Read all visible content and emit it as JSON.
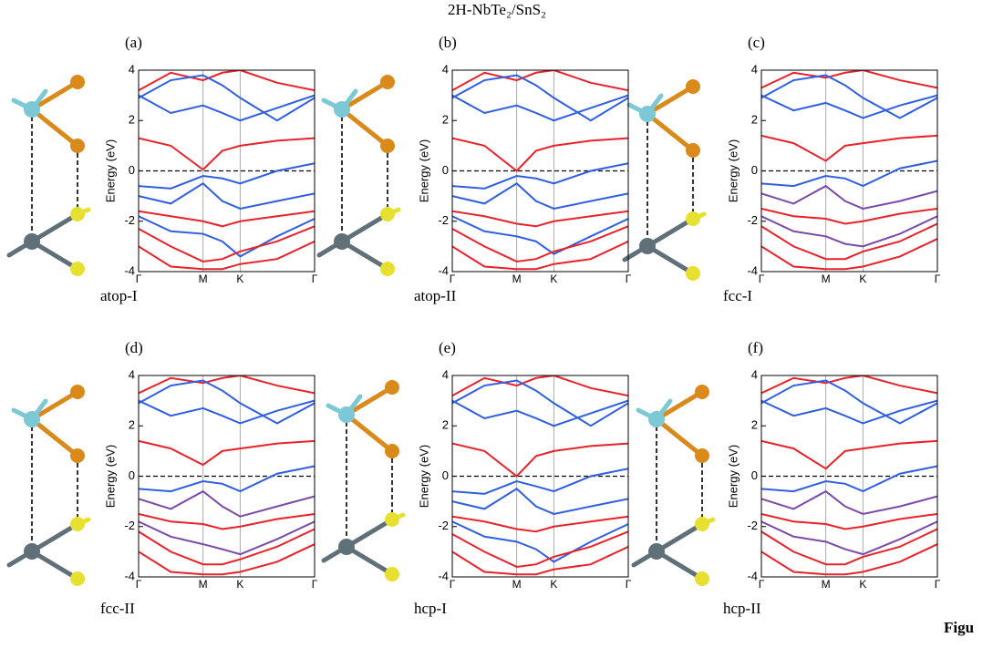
{
  "title": "2H-NbTe₂/SnS₂",
  "caption_fragment": "Figu",
  "chart_data": [
    {
      "type": "line",
      "panel_label": "(a)",
      "caption": "atop-I",
      "ylabel": "Energy (eV)",
      "x": [
        0,
        0.5,
        1,
        1.3,
        1.577,
        2.15,
        2.732
      ],
      "xlim": [
        0,
        2.732
      ],
      "xticks": [
        {
          "value": 0,
          "label": "Γ"
        },
        {
          "value": 1,
          "label": "M"
        },
        {
          "value": 1.577,
          "label": "K"
        },
        {
          "value": 2.732,
          "label": "Γ"
        }
      ],
      "ylim": [
        -4,
        4
      ],
      "yticks": [
        -4,
        -2,
        0,
        2,
        4
      ],
      "reference_line": 0,
      "series": [
        {
          "color": "#e8222a",
          "values": [
            1.3,
            1.0,
            0.05,
            0.8,
            1.0,
            1.2,
            1.3
          ]
        },
        {
          "color": "#e8222a",
          "values": [
            3.2,
            3.9,
            3.6,
            3.9,
            4.0,
            3.5,
            3.2
          ]
        },
        {
          "color": "#2f5fe0",
          "values": [
            3.0,
            2.3,
            2.6,
            2.3,
            2.0,
            2.5,
            3.0
          ]
        },
        {
          "color": "#2f5fe0",
          "values": [
            2.9,
            3.6,
            3.8,
            3.4,
            2.9,
            2.0,
            2.9
          ]
        },
        {
          "color": "#2f5fe0",
          "values": [
            -0.6,
            -0.7,
            -0.2,
            -0.3,
            -0.5,
            0.0,
            0.3
          ]
        },
        {
          "color": "#2f5fe0",
          "values": [
            -1.0,
            -1.3,
            -0.5,
            -1.2,
            -1.5,
            -1.2,
            -0.9
          ]
        },
        {
          "color": "#e8222a",
          "values": [
            -1.6,
            -1.8,
            -2.0,
            -2.2,
            -2.0,
            -1.8,
            -1.6
          ]
        },
        {
          "color": "#2f5fe0",
          "values": [
            -1.8,
            -2.4,
            -2.5,
            -2.8,
            -3.4,
            -2.6,
            -1.9
          ]
        },
        {
          "color": "#e8222a",
          "values": [
            -2.3,
            -3.0,
            -3.6,
            -3.5,
            -3.2,
            -2.8,
            -2.2
          ]
        },
        {
          "color": "#e8222a",
          "values": [
            -3.0,
            -3.8,
            -3.9,
            -3.9,
            -3.7,
            -3.5,
            -2.8
          ]
        }
      ]
    },
    {
      "type": "line",
      "panel_label": "(b)",
      "caption": "atop-II",
      "ylabel": "Energy (eV)",
      "x": [
        0,
        0.5,
        1,
        1.3,
        1.577,
        2.15,
        2.732
      ],
      "xlim": [
        0,
        2.732
      ],
      "xticks": [
        {
          "value": 0,
          "label": "Γ"
        },
        {
          "value": 1,
          "label": "M"
        },
        {
          "value": 1.577,
          "label": "K"
        },
        {
          "value": 2.732,
          "label": "Γ"
        }
      ],
      "ylim": [
        -4,
        4
      ],
      "yticks": [
        -4,
        -2,
        0,
        2,
        4
      ],
      "reference_line": 0,
      "series": [
        {
          "color": "#e8222a",
          "values": [
            1.3,
            1.0,
            0.0,
            0.8,
            1.0,
            1.2,
            1.3
          ]
        },
        {
          "color": "#e8222a",
          "values": [
            3.2,
            3.9,
            3.6,
            3.9,
            4.0,
            3.5,
            3.2
          ]
        },
        {
          "color": "#2f5fe0",
          "values": [
            3.0,
            2.3,
            2.6,
            2.3,
            2.0,
            2.5,
            3.0
          ]
        },
        {
          "color": "#2f5fe0",
          "values": [
            2.9,
            3.6,
            3.8,
            3.4,
            2.9,
            2.0,
            2.9
          ]
        },
        {
          "color": "#2f5fe0",
          "values": [
            -0.6,
            -0.7,
            -0.2,
            -0.3,
            -0.5,
            0.0,
            0.3
          ]
        },
        {
          "color": "#2f5fe0",
          "values": [
            -1.0,
            -1.3,
            -0.5,
            -1.2,
            -1.5,
            -1.2,
            -0.9
          ]
        },
        {
          "color": "#e8222a",
          "values": [
            -1.6,
            -1.8,
            -2.1,
            -2.2,
            -2.0,
            -1.8,
            -1.6
          ]
        },
        {
          "color": "#2f5fe0",
          "values": [
            -1.8,
            -2.4,
            -2.6,
            -2.8,
            -3.3,
            -2.6,
            -1.9
          ]
        },
        {
          "color": "#e8222a",
          "values": [
            -2.3,
            -3.0,
            -3.6,
            -3.5,
            -3.2,
            -2.8,
            -2.2
          ]
        },
        {
          "color": "#e8222a",
          "values": [
            -3.0,
            -3.8,
            -3.9,
            -3.9,
            -3.7,
            -3.5,
            -2.8
          ]
        }
      ]
    },
    {
      "type": "line",
      "panel_label": "(c)",
      "caption": "fcc-I",
      "ylabel": "Energy (eV)",
      "x": [
        0,
        0.5,
        1,
        1.3,
        1.577,
        2.15,
        2.732
      ],
      "xlim": [
        0,
        2.732
      ],
      "xticks": [
        {
          "value": 0,
          "label": "Γ"
        },
        {
          "value": 1,
          "label": "M"
        },
        {
          "value": 1.577,
          "label": "K"
        },
        {
          "value": 2.732,
          "label": "Γ"
        }
      ],
      "ylim": [
        -4,
        4
      ],
      "yticks": [
        -4,
        -2,
        0,
        2,
        4
      ],
      "reference_line": 0,
      "series": [
        {
          "color": "#e8222a",
          "values": [
            1.4,
            1.1,
            0.4,
            1.0,
            1.1,
            1.3,
            1.4
          ]
        },
        {
          "color": "#e8222a",
          "values": [
            3.3,
            3.9,
            3.7,
            3.9,
            4.0,
            3.6,
            3.3
          ]
        },
        {
          "color": "#2f5fe0",
          "values": [
            3.0,
            2.4,
            2.7,
            2.4,
            2.1,
            2.6,
            3.0
          ]
        },
        {
          "color": "#2f5fe0",
          "values": [
            2.9,
            3.6,
            3.8,
            3.4,
            2.9,
            2.1,
            2.9
          ]
        },
        {
          "color": "#2f5fe0",
          "values": [
            -0.5,
            -0.6,
            -0.2,
            -0.3,
            -0.6,
            0.1,
            0.4
          ]
        },
        {
          "color": "#7a4aa8",
          "values": [
            -0.9,
            -1.3,
            -0.6,
            -1.2,
            -1.5,
            -1.2,
            -0.8
          ]
        },
        {
          "color": "#e8222a",
          "values": [
            -1.5,
            -1.8,
            -1.9,
            -2.1,
            -2.0,
            -1.7,
            -1.5
          ]
        },
        {
          "color": "#7a4aa8",
          "values": [
            -1.8,
            -2.4,
            -2.6,
            -2.9,
            -3.0,
            -2.5,
            -1.8
          ]
        },
        {
          "color": "#e8222a",
          "values": [
            -2.2,
            -3.0,
            -3.5,
            -3.5,
            -3.2,
            -2.8,
            -2.1
          ]
        },
        {
          "color": "#e8222a",
          "values": [
            -3.0,
            -3.8,
            -3.9,
            -3.9,
            -3.8,
            -3.4,
            -2.7
          ]
        }
      ]
    },
    {
      "type": "line",
      "panel_label": "(d)",
      "caption": "fcc-II",
      "ylabel": "Energy (eV)",
      "x": [
        0,
        0.5,
        1,
        1.3,
        1.577,
        2.15,
        2.732
      ],
      "xlim": [
        0,
        2.732
      ],
      "xticks": [
        {
          "value": 0,
          "label": "Γ"
        },
        {
          "value": 1,
          "label": "M"
        },
        {
          "value": 1.577,
          "label": "K"
        },
        {
          "value": 2.732,
          "label": "Γ"
        }
      ],
      "ylim": [
        -4,
        4
      ],
      "yticks": [
        -4,
        -2,
        0,
        2,
        4
      ],
      "reference_line": 0,
      "series": [
        {
          "color": "#e8222a",
          "values": [
            1.4,
            1.1,
            0.45,
            1.0,
            1.1,
            1.3,
            1.4
          ]
        },
        {
          "color": "#e8222a",
          "values": [
            3.3,
            3.9,
            3.7,
            3.9,
            4.0,
            3.6,
            3.3
          ]
        },
        {
          "color": "#2f5fe0",
          "values": [
            3.0,
            2.4,
            2.7,
            2.4,
            2.1,
            2.6,
            3.0
          ]
        },
        {
          "color": "#2f5fe0",
          "values": [
            2.9,
            3.6,
            3.8,
            3.4,
            2.9,
            2.1,
            2.9
          ]
        },
        {
          "color": "#2f5fe0",
          "values": [
            -0.5,
            -0.6,
            -0.2,
            -0.3,
            -0.6,
            0.1,
            0.4
          ]
        },
        {
          "color": "#7a4aa8",
          "values": [
            -0.9,
            -1.3,
            -0.6,
            -1.2,
            -1.6,
            -1.2,
            -0.8
          ]
        },
        {
          "color": "#e8222a",
          "values": [
            -1.5,
            -1.8,
            -1.9,
            -2.1,
            -2.0,
            -1.7,
            -1.5
          ]
        },
        {
          "color": "#7a4aa8",
          "values": [
            -1.8,
            -2.4,
            -2.7,
            -2.9,
            -3.1,
            -2.5,
            -1.8
          ]
        },
        {
          "color": "#e8222a",
          "values": [
            -2.2,
            -3.0,
            -3.5,
            -3.5,
            -3.3,
            -2.8,
            -2.1
          ]
        },
        {
          "color": "#e8222a",
          "values": [
            -3.0,
            -3.8,
            -3.9,
            -3.9,
            -3.8,
            -3.4,
            -2.7
          ]
        }
      ]
    },
    {
      "type": "line",
      "panel_label": "(e)",
      "caption": "hcp-I",
      "ylabel": "Energy (eV)",
      "x": [
        0,
        0.5,
        1,
        1.3,
        1.577,
        2.15,
        2.732
      ],
      "xlim": [
        0,
        2.732
      ],
      "xticks": [
        {
          "value": 0,
          "label": "Γ"
        },
        {
          "value": 1,
          "label": "M"
        },
        {
          "value": 1.577,
          "label": "K"
        },
        {
          "value": 2.732,
          "label": "Γ"
        }
      ],
      "ylim": [
        -4,
        4
      ],
      "yticks": [
        -4,
        -2,
        0,
        2,
        4
      ],
      "reference_line": 0,
      "series": [
        {
          "color": "#e8222a",
          "values": [
            1.3,
            1.0,
            0.0,
            0.8,
            1.0,
            1.2,
            1.3
          ]
        },
        {
          "color": "#e8222a",
          "values": [
            3.2,
            3.9,
            3.6,
            3.9,
            4.0,
            3.5,
            3.2
          ]
        },
        {
          "color": "#2f5fe0",
          "values": [
            3.0,
            2.3,
            2.6,
            2.3,
            2.0,
            2.5,
            3.0
          ]
        },
        {
          "color": "#2f5fe0",
          "values": [
            2.9,
            3.6,
            3.8,
            3.4,
            2.9,
            2.0,
            2.9
          ]
        },
        {
          "color": "#2f5fe0",
          "values": [
            -0.6,
            -0.7,
            -0.2,
            -0.4,
            -0.6,
            0.0,
            0.3
          ]
        },
        {
          "color": "#2f5fe0",
          "values": [
            -1.0,
            -1.3,
            -0.5,
            -1.2,
            -1.5,
            -1.2,
            -0.9
          ]
        },
        {
          "color": "#e8222a",
          "values": [
            -1.6,
            -1.8,
            -2.1,
            -2.2,
            -2.0,
            -1.8,
            -1.6
          ]
        },
        {
          "color": "#2f5fe0",
          "values": [
            -1.8,
            -2.4,
            -2.6,
            -2.9,
            -3.4,
            -2.6,
            -1.9
          ]
        },
        {
          "color": "#e8222a",
          "values": [
            -2.3,
            -3.0,
            -3.6,
            -3.5,
            -3.2,
            -2.8,
            -2.2
          ]
        },
        {
          "color": "#e8222a",
          "values": [
            -3.0,
            -3.8,
            -3.9,
            -3.9,
            -3.7,
            -3.5,
            -2.8
          ]
        }
      ]
    },
    {
      "type": "line",
      "panel_label": "(f)",
      "caption": "hcp-II",
      "ylabel": "Energy (eV)",
      "x": [
        0,
        0.5,
        1,
        1.3,
        1.577,
        2.15,
        2.732
      ],
      "xlim": [
        0,
        2.732
      ],
      "xticks": [
        {
          "value": 0,
          "label": "Γ"
        },
        {
          "value": 1,
          "label": "M"
        },
        {
          "value": 1.577,
          "label": "K"
        },
        {
          "value": 2.732,
          "label": "Γ"
        }
      ],
      "ylim": [
        -4,
        4
      ],
      "yticks": [
        -4,
        -2,
        0,
        2,
        4
      ],
      "reference_line": 0,
      "series": [
        {
          "color": "#e8222a",
          "values": [
            1.4,
            1.1,
            0.3,
            1.0,
            1.1,
            1.3,
            1.4
          ]
        },
        {
          "color": "#e8222a",
          "values": [
            3.3,
            3.9,
            3.7,
            3.9,
            4.0,
            3.6,
            3.3
          ]
        },
        {
          "color": "#2f5fe0",
          "values": [
            3.0,
            2.4,
            2.7,
            2.4,
            2.1,
            2.6,
            3.0
          ]
        },
        {
          "color": "#2f5fe0",
          "values": [
            2.9,
            3.6,
            3.8,
            3.4,
            2.9,
            2.1,
            2.9
          ]
        },
        {
          "color": "#2f5fe0",
          "values": [
            -0.5,
            -0.6,
            -0.2,
            -0.3,
            -0.6,
            0.1,
            0.4
          ]
        },
        {
          "color": "#7a4aa8",
          "values": [
            -0.9,
            -1.3,
            -0.6,
            -1.2,
            -1.5,
            -1.2,
            -0.8
          ]
        },
        {
          "color": "#e8222a",
          "values": [
            -1.5,
            -1.8,
            -1.9,
            -2.1,
            -2.0,
            -1.7,
            -1.5
          ]
        },
        {
          "color": "#7a4aa8",
          "values": [
            -1.8,
            -2.4,
            -2.6,
            -2.9,
            -3.1,
            -2.5,
            -1.8
          ]
        },
        {
          "color": "#e8222a",
          "values": [
            -2.2,
            -3.0,
            -3.5,
            -3.5,
            -3.2,
            -2.8,
            -2.1
          ]
        },
        {
          "color": "#e8222a",
          "values": [
            -3.0,
            -3.8,
            -3.9,
            -3.9,
            -3.8,
            -3.4,
            -2.7
          ]
        }
      ]
    }
  ]
}
